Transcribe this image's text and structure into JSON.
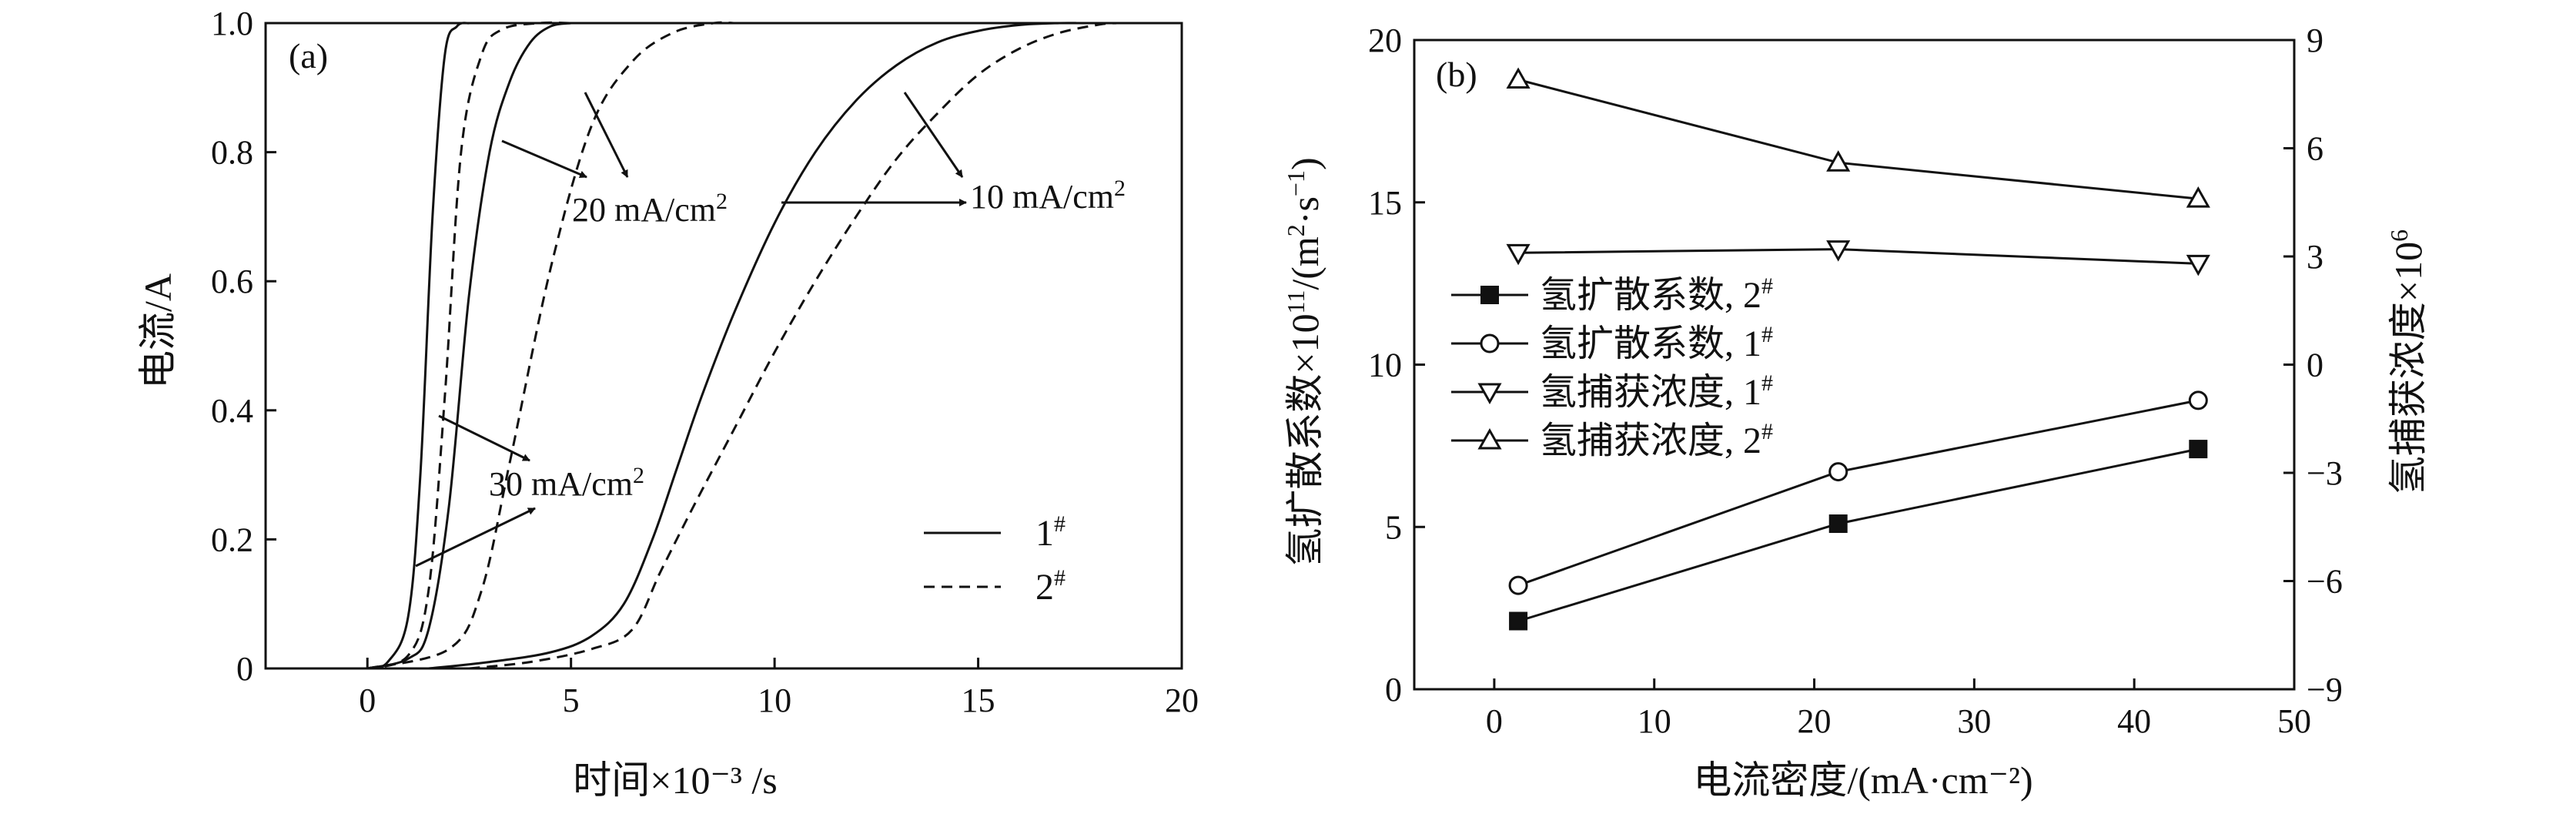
{
  "figure": {
    "panel_a_label": "(a)",
    "panel_b_label": "(b)"
  },
  "chart_data": [
    {
      "type": "line",
      "panel": "(a)",
      "xlabel": "时间×10⁻³ /s",
      "ylabel": "电流/A",
      "xlim": [
        -2.5,
        20
      ],
      "ylim": [
        0,
        1.0
      ],
      "xticks": [
        "0",
        "5",
        "10",
        "15",
        "20"
      ],
      "yticks": [
        "0",
        "0.2",
        "0.4",
        "0.6",
        "0.8",
        "1.0"
      ],
      "legend": {
        "placement": "lower-right",
        "entries": [
          {
            "label": "1",
            "sup": "#",
            "style": "solid"
          },
          {
            "label": "2",
            "sup": "#",
            "style": "dashed"
          }
        ]
      },
      "annotations": [
        "30 mA/cm",
        "20 mA/cm",
        "10 mA/cm"
      ],
      "annotation_sup": "2",
      "series": [
        {
          "sample": "1#",
          "current_density": "30 mA/cm2",
          "style": "solid",
          "x": [
            0,
            0.5,
            1.0,
            1.3,
            1.6,
            1.9,
            2.2,
            2.5
          ],
          "y": [
            0,
            0.01,
            0.08,
            0.3,
            0.7,
            0.95,
            0.995,
            1.0
          ]
        },
        {
          "sample": "2#",
          "current_density": "30 mA/cm2",
          "style": "dashed",
          "x": [
            0,
            1.0,
            1.5,
            1.9,
            2.3,
            2.8,
            3.3,
            4.2,
            5.0
          ],
          "y": [
            0,
            0.02,
            0.12,
            0.42,
            0.8,
            0.95,
            0.99,
            1.0,
            1.0
          ]
        },
        {
          "sample": "1#",
          "current_density": "20 mA/cm2",
          "style": "solid",
          "x": [
            0,
            1.0,
            1.5,
            2.0,
            2.5,
            3.0,
            3.5,
            4.0,
            4.5,
            5.0
          ],
          "y": [
            0,
            0.015,
            0.06,
            0.25,
            0.58,
            0.8,
            0.91,
            0.97,
            0.995,
            1.0
          ]
        },
        {
          "sample": "2#",
          "current_density": "20 mA/cm2",
          "style": "dashed",
          "x": [
            0,
            2.0,
            2.8,
            3.5,
            4.5,
            5.5,
            6.5,
            7.5,
            8.5,
            9.0
          ],
          "y": [
            0,
            0.03,
            0.12,
            0.32,
            0.62,
            0.84,
            0.94,
            0.985,
            1.0,
            1.0
          ]
        },
        {
          "sample": "1#",
          "current_density": "10 mA/cm2",
          "style": "solid",
          "x": [
            1.5,
            3.0,
            4.5,
            5.5,
            6.3,
            7.0,
            7.6,
            8.2,
            9.0,
            10.0,
            11.0,
            12.0,
            13.0,
            14.0,
            15.0,
            16.0,
            17.0,
            17.5
          ],
          "y": [
            0,
            0.01,
            0.025,
            0.05,
            0.1,
            0.2,
            0.31,
            0.42,
            0.55,
            0.69,
            0.8,
            0.88,
            0.935,
            0.97,
            0.988,
            0.997,
            1.0,
            1.0
          ]
        },
        {
          "sample": "2#",
          "current_density": "10 mA/cm2",
          "style": "dashed",
          "x": [
            2.5,
            4.0,
            5.5,
            6.5,
            7.2,
            8.0,
            9.0,
            10.0,
            11.0,
            12.0,
            13.0,
            14.0,
            15.0,
            16.0,
            17.0,
            18.0,
            18.4
          ],
          "y": [
            0,
            0.01,
            0.03,
            0.06,
            0.15,
            0.25,
            0.37,
            0.49,
            0.6,
            0.7,
            0.79,
            0.86,
            0.92,
            0.96,
            0.985,
            0.998,
            1.0
          ]
        }
      ]
    },
    {
      "type": "line",
      "panel": "(b)",
      "xlabel": "电流密度/(mA·cm⁻²)",
      "ylabel_left": "氢扩散系数×10",
      "ylabel_left_sup": "11",
      "ylabel_left_tail": "/(m",
      "ylabel_left_sup2": "2",
      "ylabel_left_tail2": "·s",
      "ylabel_left_sup3": "−1",
      "ylabel_left_tail3": ")",
      "ylabel_right": "氢捕获浓度×10",
      "ylabel_right_sup": "6",
      "xlim": [
        -5,
        50
      ],
      "ylim_left": [
        0,
        20
      ],
      "ylim_right": [
        -9,
        9
      ],
      "xticks": [
        "0",
        "10",
        "20",
        "30",
        "40",
        "50"
      ],
      "yticks_left": [
        "0",
        "5",
        "10",
        "15",
        "20"
      ],
      "yticks_right": [
        "−9",
        "−6",
        "−3",
        "0",
        "3",
        "6",
        "9"
      ],
      "legend": {
        "placement": "center-left"
      },
      "series": [
        {
          "name": "氢扩散系数, 2",
          "sup": "#",
          "marker": "filled-square",
          "axis": "left",
          "x": [
            1.5,
            21.5,
            44
          ],
          "y": [
            2.1,
            5.1,
            7.4
          ]
        },
        {
          "name": "氢扩散系数, 1",
          "sup": "#",
          "marker": "open-circle",
          "axis": "left",
          "x": [
            1.5,
            21.5,
            44
          ],
          "y": [
            3.2,
            6.7,
            8.9
          ]
        },
        {
          "name": "氢捕获浓度, 1",
          "sup": "#",
          "marker": "open-triangle-down",
          "axis": "right",
          "x": [
            1.5,
            21.5,
            44
          ],
          "y": [
            3.1,
            3.2,
            2.8
          ]
        },
        {
          "name": "氢捕获浓度, 2",
          "sup": "#",
          "marker": "open-triangle-up",
          "axis": "right",
          "x": [
            1.5,
            21.5,
            44
          ],
          "y": [
            7.9,
            5.6,
            4.6
          ]
        }
      ]
    }
  ]
}
